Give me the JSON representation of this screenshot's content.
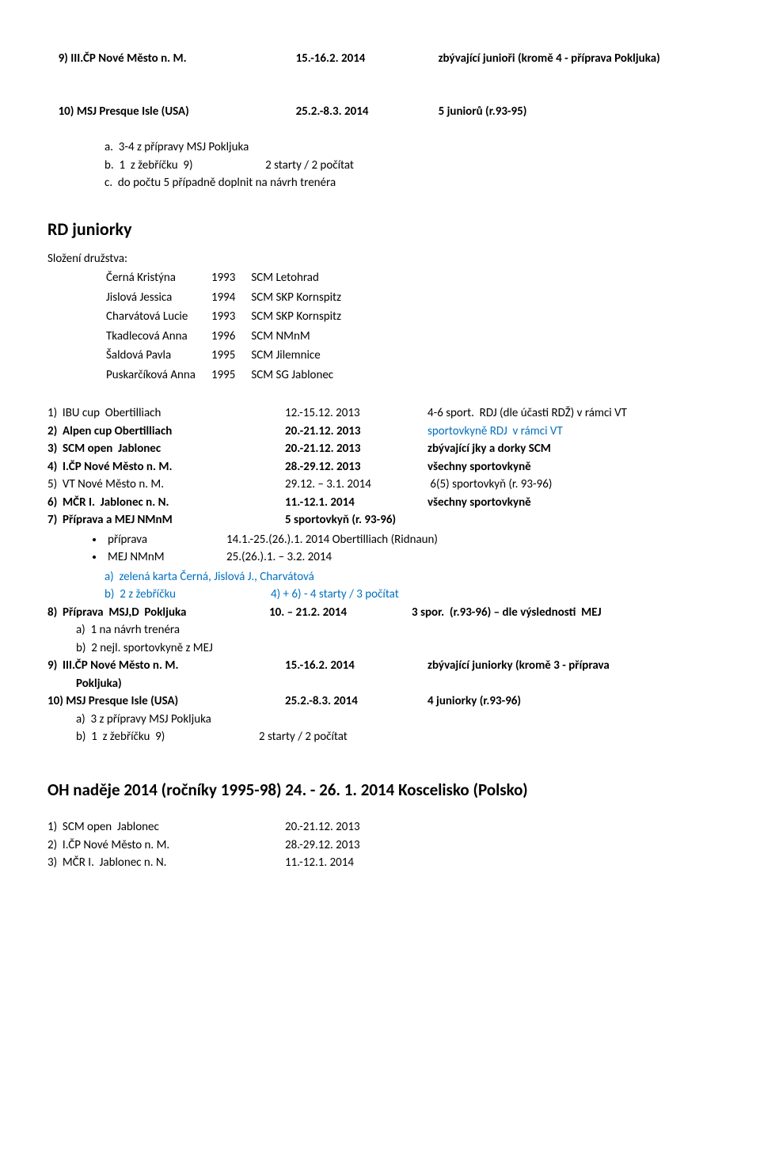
{
  "top": {
    "l1a": "9) III.ČP Nové Město n. M.",
    "l1b": "15.-16.2. 2014",
    "l1c": "zbývající junioři (kromě 4 - příprava Pokljuka)",
    "l2a": "10) MSJ Presque Isle (USA)",
    "l2b": "25.2.-8.3. 2014",
    "l2c": "5 juniorů (r.93-95)",
    "a": "a.  3-4 z přípravy MSJ Pokljuka",
    "b": "b.  1  z žebříčku  9)                           2 starty / 2 počítat",
    "c": "c.  do počtu 5 případně doplnit na návrh trenéra"
  },
  "rd": {
    "title": "RD juniorky",
    "sub": "Složení družstva:",
    "rows": [
      [
        "Černá Kristýna",
        "1993",
        "SCM Letohrad"
      ],
      [
        "Jislová Jessica",
        "1994",
        "SCM SKP Kornspitz"
      ],
      [
        "Charvátová Lucie",
        "1993",
        "SCM SKP Kornspitz"
      ],
      [
        "Tkadlecová Anna",
        "1996",
        "SCM NMnM"
      ],
      [
        "Šaldová Pavla",
        "1995",
        "SCM Jilemnice"
      ],
      [
        "Puskarčíková Anna",
        "1995",
        "SCM SG Jablonec"
      ]
    ]
  },
  "list": {
    "r1a": "1)  IBU cup  Obertilliach",
    "r1b": "12.-15.12. 2013",
    "r1c": "4-6 sport.  RDJ (dle účasti RDŽ) v rámci VT",
    "r2a": "2)  Alpen cup Obertilliach",
    "r2b": "20.-21.12. 2013",
    "r2c": "sportovkyně RDJ  v rámci VT",
    "r3a": "3)  SCM open  Jablonec",
    "r3b": "20.-21.12. 2013",
    "r3c": "zbývající jky a dorky SCM",
    "r4a": "4)  I.ČP Nové Město n. M.",
    "r4b": "28.-29.12. 2013",
    "r4c": "všechny sportovkyně",
    "r5a": "5)  VT Nové Město n. M.",
    "r5b": "29.12. – 3.1. 2014",
    "r5c": " 6(5) sportovkyň (r. 93-96)",
    "r6a": "6)  MČR I.  Jablonec n. N.",
    "r6b": "11.-12.1. 2014",
    "r6c": "všechny sportovkyně",
    "r7a": "7)  Příprava a MEJ NMnM",
    "r7b": "5 sportovkyň (r. 93-96)",
    "b1a": "příprava",
    "b1b": "14.1.-25.(26.).1. 2014 Obertilliach  (Ridnaun)",
    "b2a": "MEJ NMnM",
    "b2b": "25.(26.).1. – 3.2. 2014",
    "g1": "a)  zelená karta Černá, Jislová J., Charvátová",
    "g2a": "b)  2 z žebříčku",
    "g2b": "4) + 6) - 4 starty / 3 počítat",
    "r8a": "8)  Příprava  MSJ,D  Pokljuka",
    "r8b": "10. – 21.2. 2014",
    "r8c": "3 spor.  (r.93-96) – dle výslednosti  MEJ",
    "r8s1": "a)  1 na návrh trenéra",
    "r8s2": "b)  2 nejl. sportovkyně z MEJ",
    "r9a": "9)  III.ČP Nové Město n. M.",
    "r9b": "15.-16.2. 2014",
    "r9c": "zbývající juniorky (kromě 3 - příprava",
    "r9d": "Pokljuka)",
    "r10a": "10) MSJ Presque Isle (USA)",
    "r10b": "25.2.-8.3. 2014",
    "r10c": "4 juniorky (r.93-96)",
    "r10s1": "a)  3 z přípravy MSJ Pokljuka",
    "r10s2": "b)  1  z žebříčku  9)                                   2 starty / 2 počítat"
  },
  "oh": {
    "title": "OH naděje 2014 (ročníky 1995-98) 24. - 26. 1. 2014 Koscelisko (Polsko)",
    "r1a": "1)  SCM open  Jablonec",
    "r1b": "20.-21.12. 2013",
    "r2a": "2)  I.ČP Nové Město n. M.",
    "r2b": "28.-29.12. 2013",
    "r3a": "3)  MČR I.  Jablonec n. N.",
    "r3b": "11.-12.1. 2014"
  }
}
